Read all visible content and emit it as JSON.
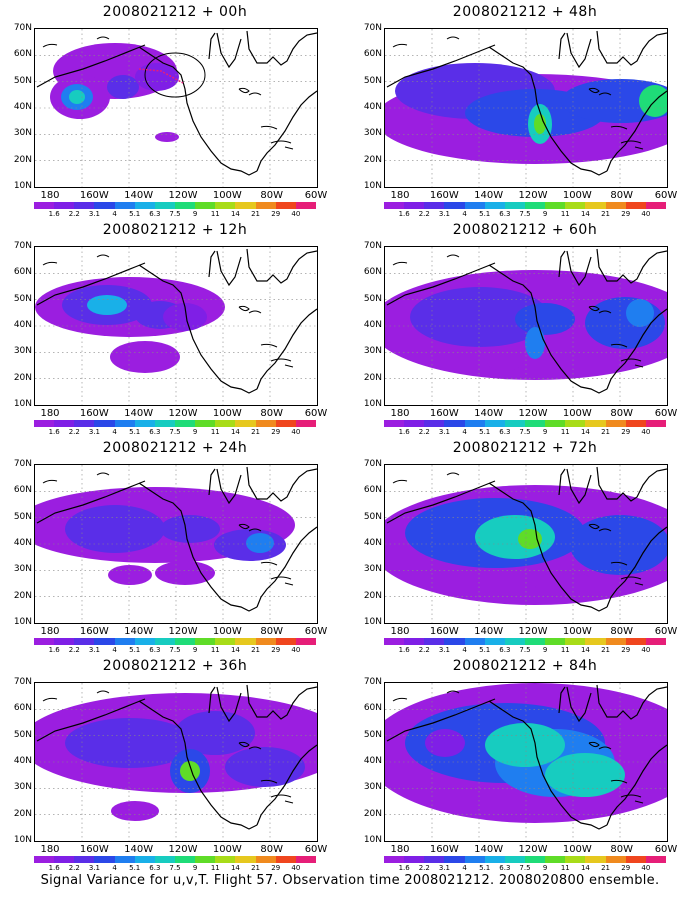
{
  "caption": "Signal Variance for u,v,T. Flight 57. Observation time 2008021212. 2008020800 ensemble.",
  "lat_labels": [
    "70N",
    "60N",
    "50N",
    "40N",
    "30N",
    "20N",
    "10N"
  ],
  "lon_labels": [
    "180",
    "160W",
    "140W",
    "120W",
    "100W",
    "80W",
    "60W"
  ],
  "colorbar": {
    "levels": [
      "1.6",
      "2.2",
      "3.1",
      "4",
      "5.1",
      "6.3",
      "7.5",
      "9",
      "11",
      "14",
      "21",
      "29",
      "40"
    ],
    "colors": [
      "#9b1ee0",
      "#7f1fe6",
      "#5a2ee8",
      "#2b48e8",
      "#1f7ef0",
      "#19b0e8",
      "#17ccc0",
      "#1fdc78",
      "#5fdc28",
      "#a8dc18",
      "#e6c81e",
      "#f08a1e",
      "#f0461e",
      "#e61e78"
    ]
  },
  "panels": [
    {
      "id": "p00",
      "title": "2008021212 + 00h"
    },
    {
      "id": "p48",
      "title": "2008021212 + 48h"
    },
    {
      "id": "p12",
      "title": "2008021212 + 12h"
    },
    {
      "id": "p60",
      "title": "2008021212 + 60h"
    },
    {
      "id": "p24",
      "title": "2008021212 + 24h"
    },
    {
      "id": "p72",
      "title": "2008021212 + 72h"
    },
    {
      "id": "p36",
      "title": "2008021212 + 36h"
    },
    {
      "id": "p84",
      "title": "2008021212 + 84h"
    }
  ]
}
